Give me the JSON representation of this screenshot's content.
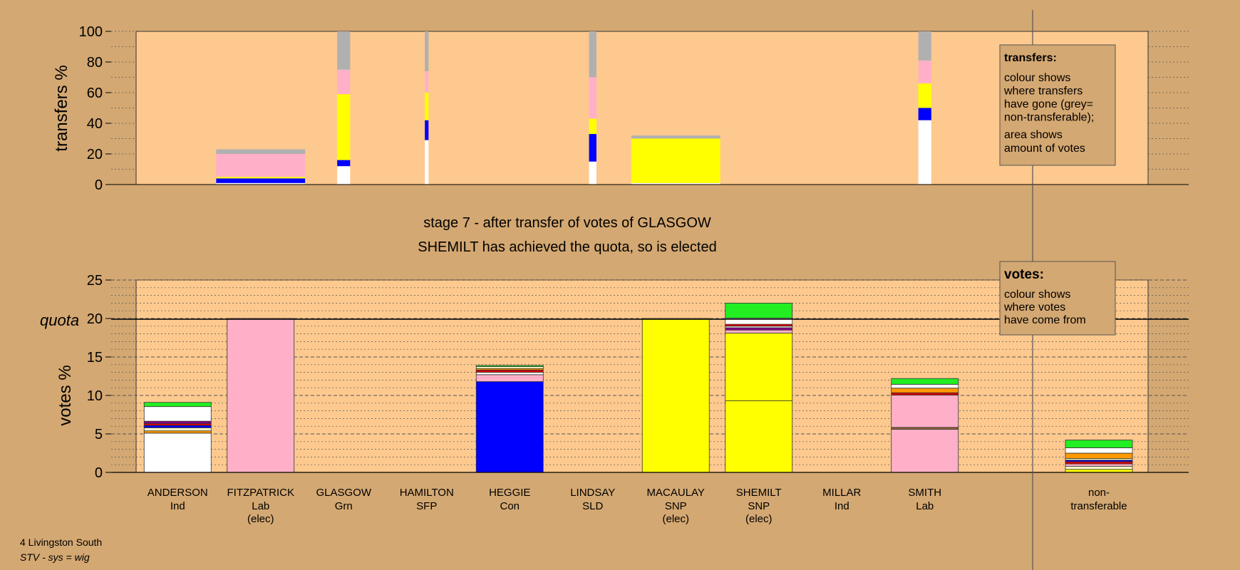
{
  "colors": {
    "background": "#d4a872",
    "panel": "#fdc98e",
    "white": "#ffffff",
    "pink": "#ffb0c8",
    "yellow": "#ffff00",
    "blue": "#0000ff",
    "grey": "#b0b0b0",
    "green": "#22ee22",
    "orange": "#ff9900",
    "red": "#dd0000",
    "purple": "#880088",
    "brown": "#996633",
    "cream": "#ffffcc"
  },
  "stage": {
    "title": "stage 7 - after transfer of votes of GLASGOW",
    "subtitle": "SHEMILT has achieved the quota, so is elected"
  },
  "footer": {
    "ward": "4 Livingston South",
    "system": "STV - sys = wig"
  },
  "legend_transfers": {
    "heading": "transfers:",
    "lines1": [
      "colour shows",
      "where transfers",
      "have gone (grey=",
      "non-transferable);"
    ],
    "lines2": [
      "area shows",
      "amount of votes"
    ]
  },
  "legend_votes": {
    "heading": "votes:",
    "lines": [
      "colour shows",
      "where votes",
      "have come from"
    ]
  },
  "chart_data": [
    {
      "type": "bar",
      "name": "transfers",
      "ylabel": "transfers %",
      "ylim": [
        0,
        100
      ],
      "yticks": [
        0,
        20,
        40,
        60,
        80,
        100
      ],
      "bars": [
        {
          "slot": 1,
          "width": 0.48,
          "segments": [
            {
              "color": "white",
              "v": 1
            },
            {
              "color": "blue",
              "v": 3
            },
            {
              "color": "yellow",
              "v": 1
            },
            {
              "color": "pink",
              "v": 15
            },
            {
              "color": "grey",
              "v": 3
            }
          ]
        },
        {
          "slot": 2,
          "width": 0.07,
          "segments": [
            {
              "color": "white",
              "v": 12
            },
            {
              "color": "blue",
              "v": 4
            },
            {
              "color": "yellow",
              "v": 43
            },
            {
              "color": "pink",
              "v": 16
            },
            {
              "color": "grey",
              "v": 25
            }
          ]
        },
        {
          "slot": 3,
          "width": 0.02,
          "segments": [
            {
              "color": "white",
              "v": 29
            },
            {
              "color": "blue",
              "v": 13
            },
            {
              "color": "yellow",
              "v": 18
            },
            {
              "color": "pink",
              "v": 14
            },
            {
              "color": "grey",
              "v": 26
            }
          ]
        },
        {
          "slot": 5,
          "width": 0.04,
          "segments": [
            {
              "color": "white",
              "v": 15
            },
            {
              "color": "blue",
              "v": 18
            },
            {
              "color": "yellow",
              "v": 10
            },
            {
              "color": "pink",
              "v": 27
            },
            {
              "color": "grey",
              "v": 30
            }
          ]
        },
        {
          "slot": 6,
          "width": 0.48,
          "segments": [
            {
              "color": "white",
              "v": 1
            },
            {
              "color": "yellow",
              "v": 29
            },
            {
              "color": "grey",
              "v": 2
            }
          ]
        },
        {
          "slot": 9,
          "width": 0.07,
          "segments": [
            {
              "color": "white",
              "v": 42
            },
            {
              "color": "blue",
              "v": 8
            },
            {
              "color": "yellow",
              "v": 16
            },
            {
              "color": "pink",
              "v": 15
            },
            {
              "color": "grey",
              "v": 19
            }
          ]
        }
      ]
    },
    {
      "type": "bar",
      "name": "votes",
      "ylabel": "votes %",
      "ylim": [
        0,
        25
      ],
      "yticks": [
        0,
        5,
        10,
        15,
        20,
        25
      ],
      "quota": 20,
      "quota_label": "quota",
      "candidates": [
        {
          "name": "ANDERSON",
          "party": "Ind",
          "status": "",
          "segments": [
            {
              "color": "white",
              "v": 5.1
            },
            {
              "color": "orange",
              "v": 0.3
            },
            {
              "color": "cream",
              "v": 0.4
            },
            {
              "color": "blue",
              "v": 0.3
            },
            {
              "color": "red",
              "v": 0.25
            },
            {
              "color": "purple",
              "v": 0.3
            },
            {
              "color": "white",
              "v": 1.9
            },
            {
              "color": "green",
              "v": 0.55
            }
          ]
        },
        {
          "name": "FITZPATRICK",
          "party": "Lab",
          "status": "(elec)",
          "segments": [
            {
              "color": "pink",
              "v": 20
            }
          ]
        },
        {
          "name": "GLASGOW",
          "party": "Grn",
          "status": "",
          "segments": []
        },
        {
          "name": "HAMILTON",
          "party": "SFP",
          "status": "",
          "segments": []
        },
        {
          "name": "HEGGIE",
          "party": "Con",
          "status": "",
          "segments": [
            {
              "color": "blue",
              "v": 11.8
            },
            {
              "color": "pink",
              "v": 0.9
            },
            {
              "color": "white",
              "v": 0.3
            },
            {
              "color": "red",
              "v": 0.3
            },
            {
              "color": "orange",
              "v": 0.2
            },
            {
              "color": "cream",
              "v": 0.25
            },
            {
              "color": "green",
              "v": 0.15
            }
          ]
        },
        {
          "name": "LINDSAY",
          "party": "SLD",
          "status": "",
          "segments": []
        },
        {
          "name": "MACAULAY",
          "party": "SNP",
          "status": "(elec)",
          "segments": [
            {
              "color": "yellow",
              "v": 20
            }
          ]
        },
        {
          "name": "SHEMILT",
          "party": "SNP",
          "status": "(elec)",
          "segments": [
            {
              "color": "yellow",
              "v": 9.3
            },
            {
              "color": "yellow",
              "v": 8.8
            },
            {
              "color": "pink",
              "v": 0.4
            },
            {
              "color": "purple",
              "v": 0.3
            },
            {
              "color": "white",
              "v": 0.2
            },
            {
              "color": "red",
              "v": 0.25
            },
            {
              "color": "white",
              "v": 0.8
            },
            {
              "color": "green",
              "v": 1.95
            }
          ]
        },
        {
          "name": "MILLAR",
          "party": "Ind",
          "status": "",
          "segments": []
        },
        {
          "name": "SMITH",
          "party": "Lab",
          "status": "",
          "segments": [
            {
              "color": "pink",
              "v": 5.6
            },
            {
              "color": "brown",
              "v": 0.25
            },
            {
              "color": "pink",
              "v": 4.2
            },
            {
              "color": "red",
              "v": 0.3
            },
            {
              "color": "orange",
              "v": 0.6
            },
            {
              "color": "white",
              "v": 0.5
            },
            {
              "color": "green",
              "v": 0.75
            }
          ]
        }
      ],
      "nontransferable": {
        "label1": "non-",
        "label2": "transferable",
        "segments": [
          {
            "color": "yellow",
            "v": 0.4
          },
          {
            "color": "cream",
            "v": 0.4
          },
          {
            "color": "pink",
            "v": 0.3
          },
          {
            "color": "red",
            "v": 0.3
          },
          {
            "color": "blue",
            "v": 0.2
          },
          {
            "color": "cream",
            "v": 0.2
          },
          {
            "color": "orange",
            "v": 0.7
          },
          {
            "color": "white",
            "v": 0.7
          },
          {
            "color": "green",
            "v": 1.0
          }
        ]
      }
    }
  ]
}
